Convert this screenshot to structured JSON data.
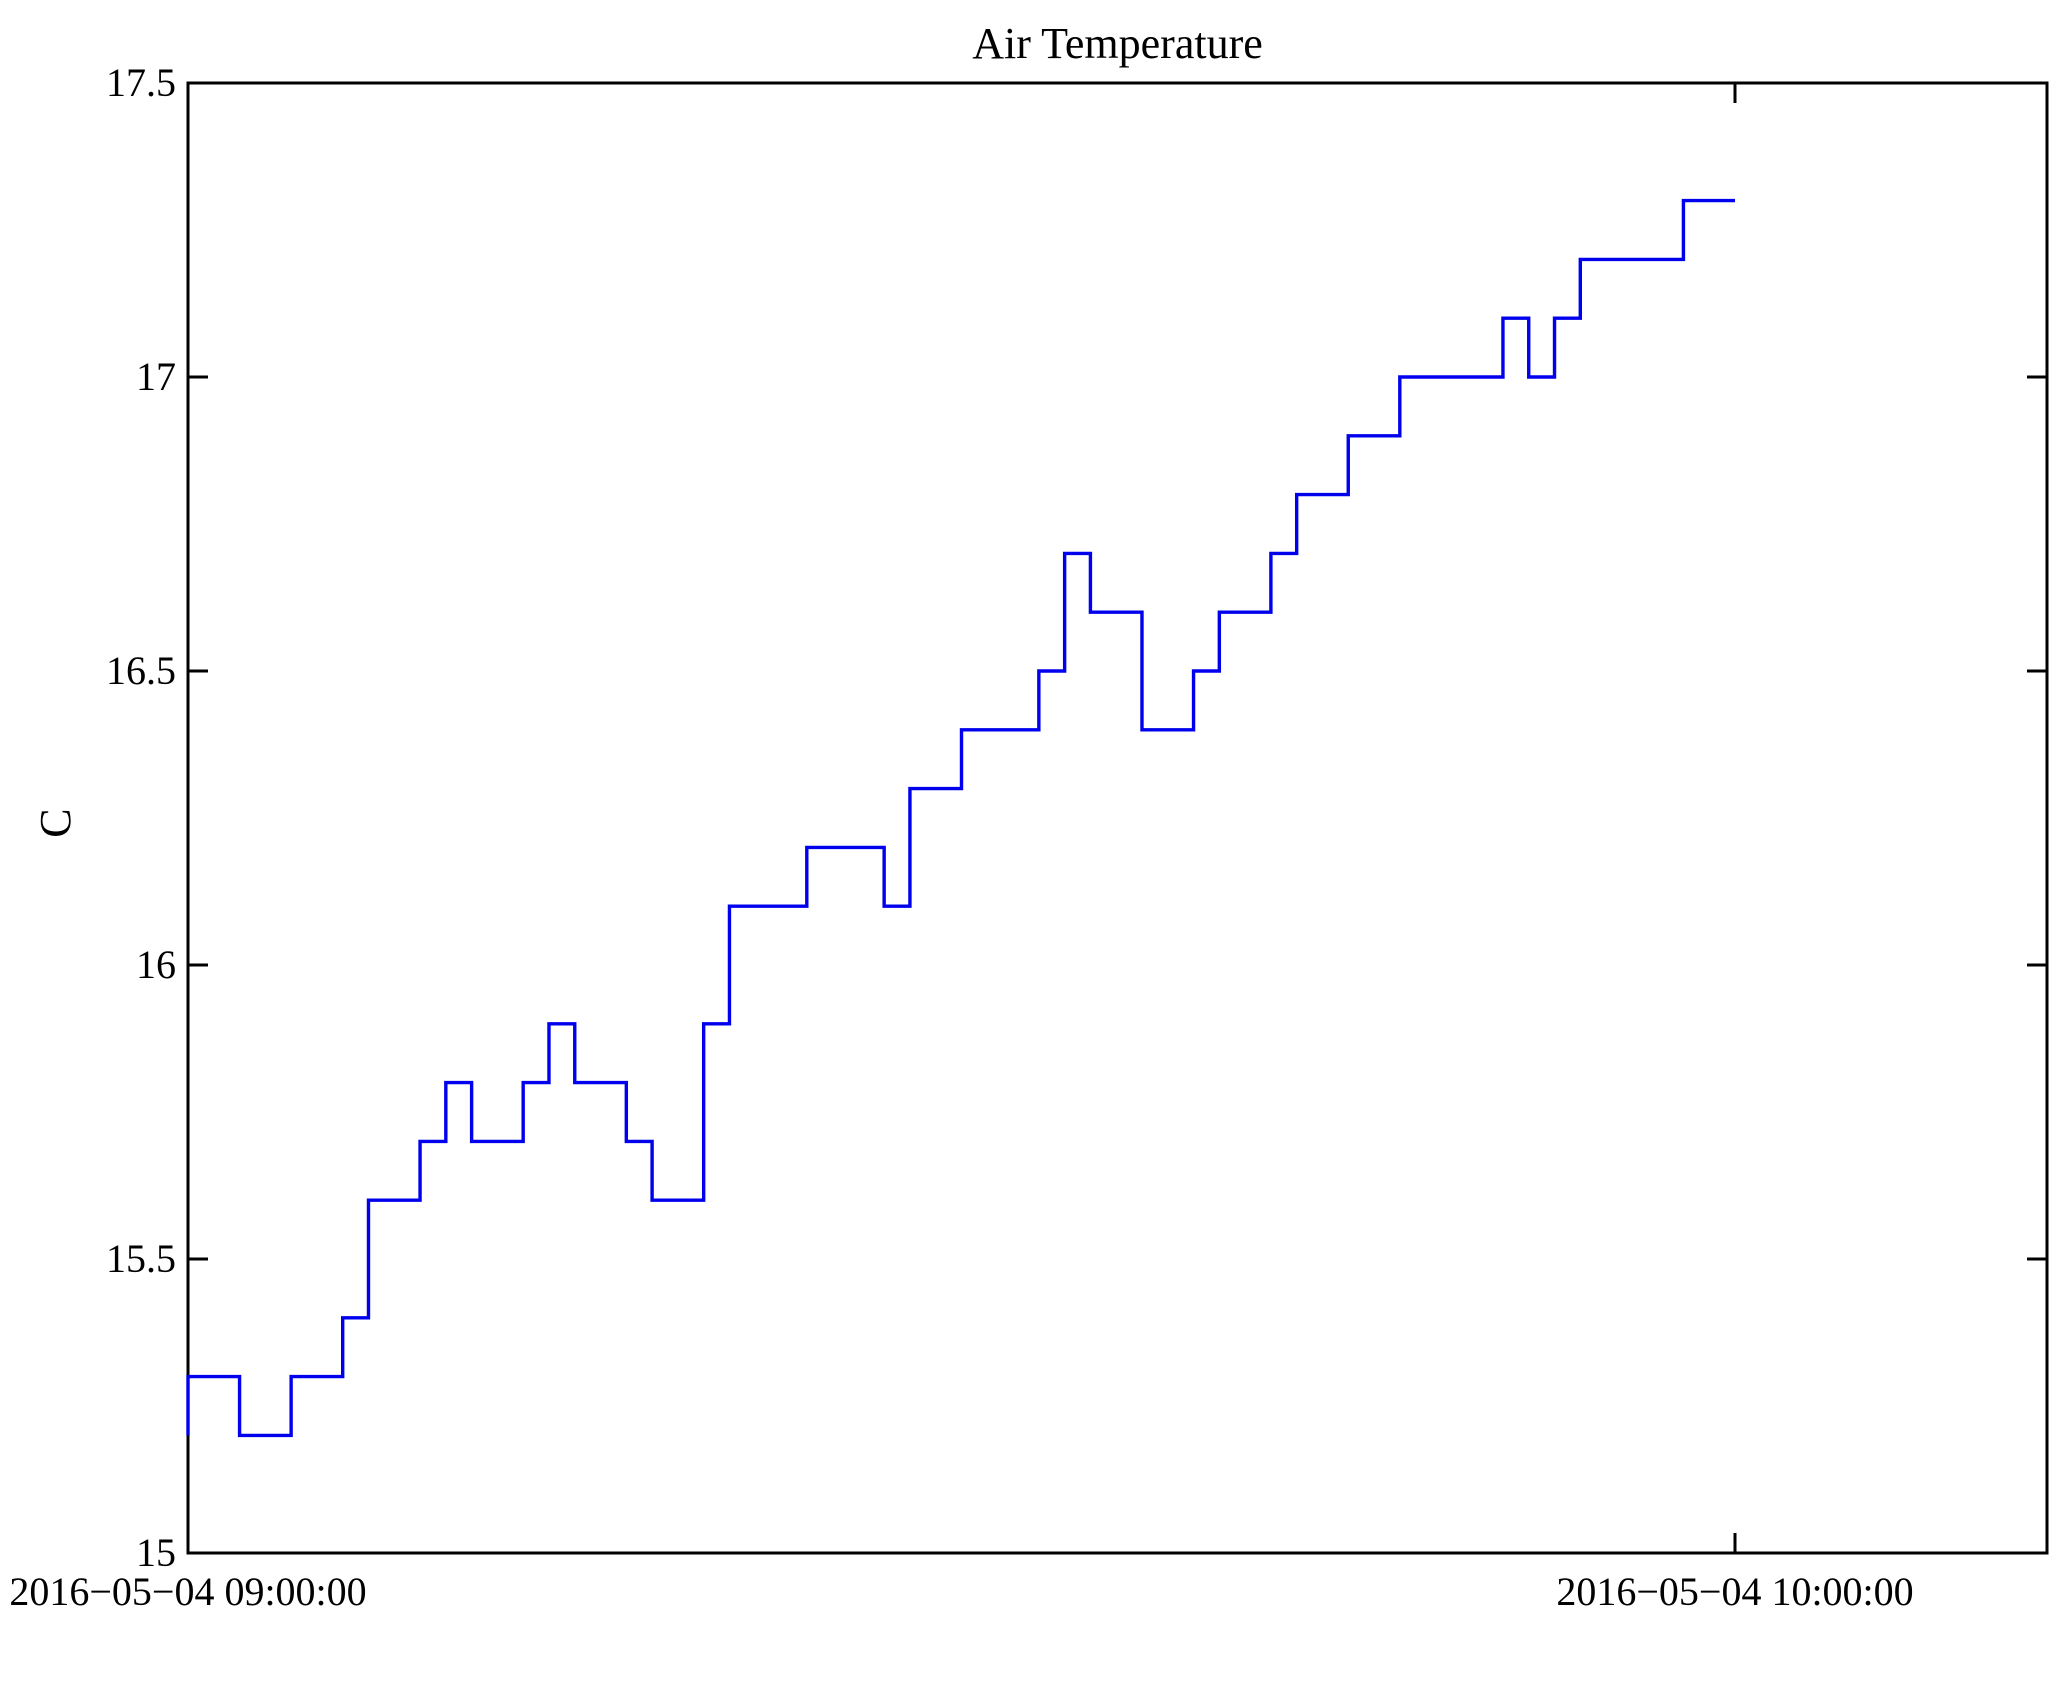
{
  "figure": {
    "background": "#ffffff"
  },
  "chart_data": {
    "type": "line",
    "subtype": "stairs-step",
    "title": "Air Temperature",
    "xlabel": "",
    "ylabel": "C",
    "line_color": "#0000ee",
    "axis_color": "#000000",
    "grid": false,
    "box": true,
    "tick_direction": "in",
    "legend_position": "none",
    "ylim": [
      15,
      17.5
    ],
    "ytick_values": [
      15,
      15.5,
      16,
      16.5,
      17,
      17.5
    ],
    "ytick_labels": [
      "15",
      "15.5",
      "16",
      "16.5",
      "17",
      "17.5"
    ],
    "xlim_minutes": [
      0,
      72.1
    ],
    "xticks": [
      {
        "minutes": 0,
        "label": "2016−05−04 09:00:00"
      },
      {
        "minutes": 60,
        "label": "2016−05−04 10:00:00"
      }
    ],
    "x_unit": "minutes after 2016-05-04 09:00:00",
    "sample_interval_minutes": 1,
    "series": [
      {
        "name": "Air Temperature (C)",
        "start_minute": 0,
        "value_before_start": 15.2,
        "values_per_minute": [
          15.3,
          15.3,
          15.2,
          15.2,
          15.3,
          15.3,
          15.4,
          15.6,
          15.6,
          15.7,
          15.8,
          15.7,
          15.7,
          15.8,
          15.9,
          15.8,
          15.8,
          15.7,
          15.6,
          15.6,
          15.9,
          16.1,
          16.1,
          16.1,
          16.2,
          16.2,
          16.2,
          16.1,
          16.3,
          16.3,
          16.4,
          16.4,
          16.4,
          16.5,
          16.7,
          16.6,
          16.6,
          16.4,
          16.4,
          16.5,
          16.6,
          16.6,
          16.7,
          16.8,
          16.8,
          16.9,
          16.9,
          17.0,
          17.0,
          17.0,
          17.0,
          17.1,
          17.0,
          17.1,
          17.2,
          17.2,
          17.2,
          17.2,
          17.3,
          17.3
        ]
      }
    ]
  }
}
